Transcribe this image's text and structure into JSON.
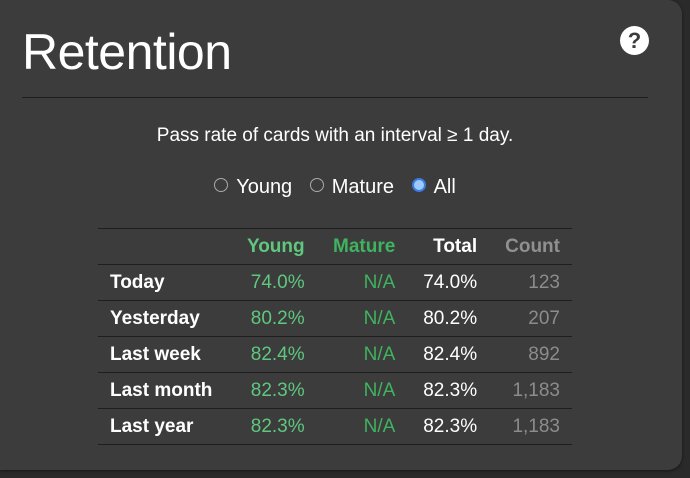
{
  "title": "Retention",
  "help_icon": "question-circle-icon",
  "subtitle": "Pass rate of cards with an interval ≥ 1 day.",
  "radios": [
    {
      "label": "Young",
      "checked": false
    },
    {
      "label": "Mature",
      "checked": false
    },
    {
      "label": "All",
      "checked": true
    }
  ],
  "table": {
    "headers": [
      "",
      "Young",
      "Mature",
      "Total",
      "Count"
    ],
    "rows": [
      [
        "Today",
        "74.0%",
        "N/A",
        "74.0%",
        "123"
      ],
      [
        "Yesterday",
        "80.2%",
        "N/A",
        "80.2%",
        "207"
      ],
      [
        "Last week",
        "82.4%",
        "N/A",
        "82.4%",
        "892"
      ],
      [
        "Last month",
        "82.3%",
        "N/A",
        "82.3%",
        "1,183"
      ],
      [
        "Last year",
        "82.3%",
        "N/A",
        "82.3%",
        "1,183"
      ]
    ]
  },
  "colors": {
    "young": "#5fc77e",
    "mature": "#3fb35f",
    "count": "#8c8c8c",
    "background": "#3c3c3c"
  }
}
